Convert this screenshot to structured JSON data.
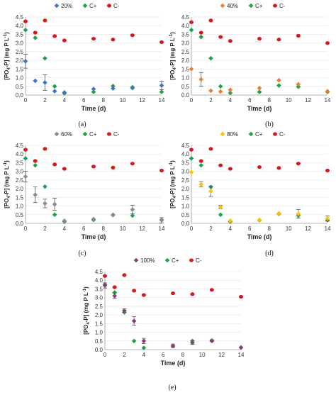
{
  "colors": {
    "C+": "#1fa24a",
    "C-": "#d7191c",
    "20%": "#4472c4",
    "40%": "#ed7d31",
    "60%": "#8c8c8c",
    "80%": "#ffc000",
    "100%": "#8e3a7e"
  },
  "chart_data": [
    {
      "type": "scatter",
      "caption": "(a)",
      "xlabel": "Time (d)",
      "ylabel": "[PO4-P] (mg P L-1)",
      "ylabel_parts": [
        "[PO",
        "4",
        "-P] (mg P L",
        "-1",
        ")"
      ],
      "xlim": [
        0,
        14
      ],
      "ylim": [
        0,
        4.5
      ],
      "xticks": [
        "0",
        "2",
        "4",
        "6",
        "8",
        "10",
        "12",
        "14"
      ],
      "yticks": [
        "0.0",
        "0.5",
        "1.0",
        "1.5",
        "2.0",
        "2.5",
        "3.0",
        "3.5",
        "4.0",
        "4.5"
      ],
      "legend": [
        "20%",
        "C+",
        "C-"
      ],
      "series": [
        {
          "name": "20%",
          "marker": "diamond",
          "x": [
            0,
            1,
            2,
            3,
            4,
            7,
            9,
            11,
            14
          ],
          "y": [
            1.95,
            0.82,
            0.72,
            0.22,
            0.15,
            0.35,
            0.38,
            0.4,
            0.55
          ],
          "err": [
            0.4,
            0,
            0.45,
            0,
            0,
            0,
            0,
            0,
            0.25
          ]
        },
        {
          "name": "C+",
          "marker": "diamond",
          "x": [
            0,
            1,
            2,
            3,
            4,
            7,
            9,
            11,
            14
          ],
          "y": [
            3.75,
            3.3,
            2.12,
            0.5,
            0.1,
            0.18,
            0.52,
            0.45,
            0.18
          ]
        },
        {
          "name": "C-",
          "marker": "circle",
          "x": [
            0,
            1,
            2,
            3,
            4,
            7,
            9,
            11,
            14
          ],
          "y": [
            4.25,
            3.6,
            4.3,
            3.4,
            3.15,
            3.25,
            3.2,
            3.45,
            3.05
          ]
        }
      ]
    },
    {
      "type": "scatter",
      "caption": "(b)",
      "xlabel": "Time (d)",
      "ylabel": "[PO4-P] (mg P L-1)",
      "ylabel_parts": [
        "[PO",
        "4",
        "-P] (mg P L",
        "-1",
        ")"
      ],
      "xlim": [
        0,
        14
      ],
      "ylim": [
        0,
        4.5
      ],
      "xticks": [
        "0",
        "2",
        "4",
        "6",
        "8",
        "10",
        "12",
        "14"
      ],
      "yticks": [
        "0.0",
        "0.5",
        "1.0",
        "1.5",
        "2.0",
        "2.5",
        "3.0",
        "3.5",
        "4.0",
        "4.5"
      ],
      "legend": [
        "40%",
        "C+",
        "C-"
      ],
      "series": [
        {
          "name": "40%",
          "marker": "diamond",
          "x": [
            0,
            1,
            2,
            3,
            4,
            7,
            9,
            11,
            14
          ],
          "y": [
            1.5,
            0.9,
            0.25,
            0.2,
            0.3,
            0.4,
            0.85,
            0.62,
            0.22
          ],
          "err": [
            0,
            0.4,
            0,
            0,
            0,
            0,
            0,
            0,
            0
          ]
        },
        {
          "name": "C+",
          "marker": "diamond",
          "x": [
            0,
            1,
            2,
            3,
            4,
            7,
            9,
            11,
            14
          ],
          "y": [
            3.75,
            3.35,
            2.12,
            0.5,
            0.12,
            0.18,
            0.55,
            0.48,
            0.18
          ]
        },
        {
          "name": "C-",
          "marker": "circle",
          "x": [
            0,
            1,
            2,
            3,
            4,
            7,
            9,
            11,
            14
          ],
          "y": [
            4.2,
            3.6,
            4.3,
            3.35,
            3.12,
            3.25,
            3.2,
            3.42,
            3.0
          ]
        }
      ]
    },
    {
      "type": "scatter",
      "caption": "(c)",
      "xlabel": "Time (d)",
      "ylabel": "[PO4-P] (mg P L-1)",
      "ylabel_parts": [
        "[PO",
        "4",
        "-P] (mg P L",
        "-1",
        ")"
      ],
      "xlim": [
        0,
        14
      ],
      "ylim": [
        0,
        4.5
      ],
      "xticks": [
        "0",
        "2",
        "4",
        "6",
        "8",
        "10",
        "12",
        "14"
      ],
      "yticks": [
        "0.0",
        "0.5",
        "1.0",
        "1.5",
        "2.0",
        "2.5",
        "3.0",
        "3.5",
        "4.0",
        "4.5"
      ],
      "legend": [
        "60%",
        "C+",
        "C-"
      ],
      "series": [
        {
          "name": "60%",
          "marker": "diamond",
          "x": [
            0,
            1,
            2,
            3,
            4,
            7,
            9,
            11,
            14
          ],
          "y": [
            2.7,
            1.65,
            1.15,
            1.1,
            0.15,
            0.25,
            0.5,
            0.8,
            0.18
          ],
          "err": [
            0.3,
            0.45,
            0.25,
            0.35,
            0,
            0,
            0,
            0.25,
            0.15
          ]
        },
        {
          "name": "C+",
          "marker": "diamond",
          "x": [
            0,
            1,
            2,
            3,
            4,
            7,
            9,
            11,
            14
          ],
          "y": [
            3.75,
            3.35,
            2.12,
            0.5,
            0.1,
            0.2,
            0.48,
            0.45,
            0.2
          ]
        },
        {
          "name": "C-",
          "marker": "circle",
          "x": [
            0,
            1,
            2,
            3,
            4,
            7,
            9,
            11,
            14
          ],
          "y": [
            4.25,
            3.6,
            4.3,
            3.4,
            3.15,
            3.28,
            3.22,
            3.45,
            3.05
          ]
        }
      ]
    },
    {
      "type": "scatter",
      "caption": "(d)",
      "xlabel": "Time (d)",
      "ylabel": "[PO4-P] (mg P L-1)",
      "ylabel_parts": [
        "[PO",
        "4",
        "-P] (mg P L",
        "-1",
        ")"
      ],
      "xlim": [
        0,
        14
      ],
      "ylim": [
        0,
        4.5
      ],
      "xticks": [
        "0",
        "2",
        "4",
        "6",
        "8",
        "10",
        "12",
        "14"
      ],
      "yticks": [
        "0.0",
        "0.5",
        "1.0",
        "1.5",
        "2.0",
        "2.5",
        "3.0",
        "3.5",
        "4.0",
        "4.5"
      ],
      "legend": [
        "80%",
        "C+",
        "C-"
      ],
      "series": [
        {
          "name": "80%",
          "marker": "diamond",
          "x": [
            0,
            1,
            2,
            3,
            4,
            7,
            9,
            11,
            14
          ],
          "y": [
            2.95,
            2.25,
            1.85,
            0.95,
            0.15,
            0.2,
            0.58,
            0.55,
            0.28
          ],
          "err": [
            0,
            0.15,
            0.3,
            0.1,
            0,
            0,
            0,
            0.25,
            0.15
          ]
        },
        {
          "name": "C+",
          "marker": "diamond",
          "x": [
            0,
            1,
            2,
            3,
            4,
            7,
            9,
            11,
            14
          ],
          "y": [
            3.75,
            3.35,
            2.1,
            0.5,
            0.1,
            0.18,
            0.55,
            0.45,
            0.18
          ]
        },
        {
          "name": "C-",
          "marker": "circle",
          "x": [
            0,
            1,
            2,
            3,
            4,
            7,
            9,
            11,
            14
          ],
          "y": [
            4.25,
            3.6,
            4.3,
            3.35,
            3.15,
            3.25,
            3.2,
            3.45,
            3.05
          ]
        }
      ]
    },
    {
      "type": "scatter",
      "caption": "(e)",
      "xlabel": "Time (d)",
      "ylabel": "[PO4-P] (mg P L-1)",
      "ylabel_parts": [
        "[PO",
        "4",
        "-P] (mg P L",
        "-1",
        ")"
      ],
      "xlim": [
        0,
        14
      ],
      "ylim": [
        0,
        4.5
      ],
      "xticks": [
        "0",
        "2",
        "4",
        "6",
        "8",
        "10",
        "12",
        "14"
      ],
      "yticks": [
        "0.0",
        "0.5",
        "1.0",
        "1.5",
        "2.0",
        "2.5",
        "3.0",
        "3.5",
        "4.0",
        "4.5"
      ],
      "legend": [
        "100%",
        "C+",
        "C-"
      ],
      "series": [
        {
          "name": "100%",
          "marker": "diamond",
          "x": [
            0,
            1,
            2,
            3,
            4,
            7,
            9,
            11,
            14
          ],
          "y": [
            3.7,
            3.1,
            2.25,
            1.65,
            0.5,
            0.22,
            0.4,
            0.52,
            0.12
          ],
          "err": [
            0.15,
            0.15,
            0.1,
            0.25,
            0.15,
            0.1,
            0.1,
            0.05,
            0
          ]
        },
        {
          "name": "C+",
          "marker": "diamond",
          "x": [
            0,
            1,
            2,
            3,
            4,
            7,
            9,
            11,
            14
          ],
          "y": [
            3.75,
            3.3,
            2.15,
            0.5,
            0.1,
            0.2,
            0.5,
            0.5,
            0.12
          ]
        },
        {
          "name": "C-",
          "marker": "circle",
          "x": [
            0,
            1,
            2,
            3,
            4,
            7,
            9,
            11,
            14
          ],
          "y": [
            4.25,
            3.6,
            4.3,
            3.4,
            3.15,
            3.25,
            3.2,
            3.45,
            3.05
          ]
        }
      ]
    }
  ]
}
